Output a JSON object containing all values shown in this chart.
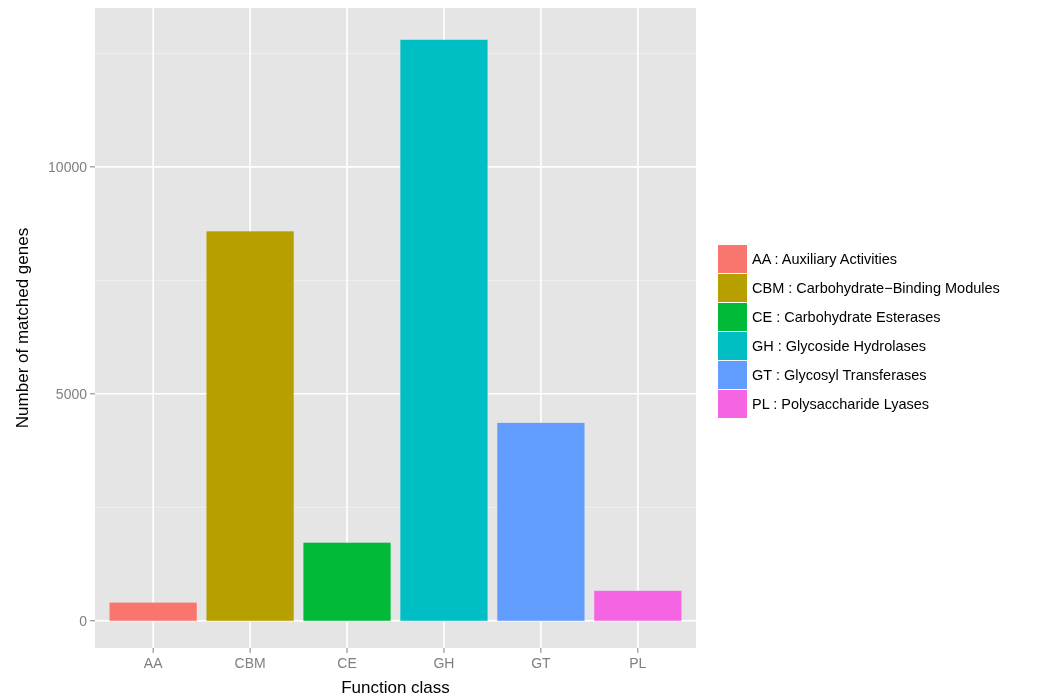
{
  "chart_data": {
    "type": "bar",
    "xlabel": "Function class",
    "ylabel": "Number of matched genes",
    "categories": [
      "AA",
      "CBM",
      "CE",
      "GH",
      "GT",
      "PL"
    ],
    "series": [
      {
        "name": "AA : Auxiliary Activities",
        "color": "#f8766d",
        "values": [
          400,
          null,
          null,
          null,
          null,
          null
        ]
      },
      {
        "name": "CBM : Carbohydrate−Binding Modules",
        "color": "#b79f00",
        "values": [
          null,
          8580,
          null,
          null,
          null,
          null
        ]
      },
      {
        "name": "CE : Carbohydrate Esterases",
        "color": "#00ba38",
        "values": [
          null,
          null,
          1720,
          null,
          null,
          null
        ]
      },
      {
        "name": "GH : Glycoside Hydrolases",
        "color": "#00bfc4",
        "values": [
          null,
          null,
          null,
          12800,
          null,
          null
        ]
      },
      {
        "name": "GT : Glycosyl Transferases",
        "color": "#619cff",
        "values": [
          null,
          null,
          null,
          null,
          4360,
          null
        ]
      },
      {
        "name": "PL : Polysaccharide Lyases",
        "color": "#f564e3",
        "values": [
          null,
          null,
          null,
          null,
          null,
          660
        ]
      }
    ],
    "ylim": [
      -600,
      13500
    ],
    "yticks": [
      0,
      {
        "value": 2500,
        "label": null
      },
      5000,
      {
        "value": 7500,
        "label": null
      },
      10000,
      {
        "value": 12500,
        "label": null
      }
    ],
    "grid": true,
    "legend": "right"
  }
}
